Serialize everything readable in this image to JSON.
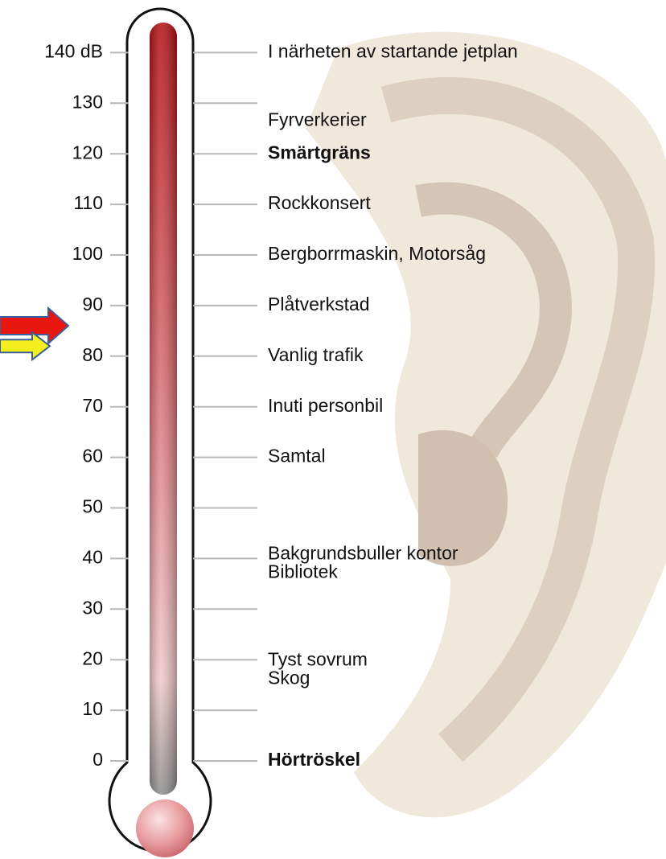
{
  "scale": {
    "ticks": [
      {
        "value": 140,
        "label": "140 dB"
      },
      130,
      120,
      110,
      100,
      90,
      80,
      70,
      60,
      50,
      40,
      30,
      20,
      10,
      0
    ]
  },
  "sources": [
    {
      "lines": [
        "I närheten av startande jetplan"
      ],
      "level": 140,
      "bold": false
    },
    {
      "lines": [
        "Fyrverkerier"
      ],
      "level": 126.5,
      "bold": false
    },
    {
      "lines": [
        "Smärtgräns"
      ],
      "level": 120,
      "bold": true
    },
    {
      "lines": [
        "Rockkonsert"
      ],
      "level": 110,
      "bold": false
    },
    {
      "lines": [
        "Bergborrmaskin, Motorsåg"
      ],
      "level": 100,
      "bold": false
    },
    {
      "lines": [
        "Plåtverkstad"
      ],
      "level": 90,
      "bold": false
    },
    {
      "lines": [
        "Vanlig trafik"
      ],
      "level": 80,
      "bold": false
    },
    {
      "lines": [
        "Inuti personbil"
      ],
      "level": 70,
      "bold": false
    },
    {
      "lines": [
        "Samtal"
      ],
      "level": 60,
      "bold": false
    },
    {
      "lines": [
        "Bakgrundsbuller kontor",
        "Bibliotek"
      ],
      "level": 39,
      "bold": false
    },
    {
      "lines": [
        "Tyst sovrum",
        "Skog"
      ],
      "level": 18,
      "bold": false
    },
    {
      "lines": [
        "Hörtröskel"
      ],
      "level": 0,
      "bold": true
    }
  ],
  "markers": [
    {
      "level": 86,
      "color": "#e8170f"
    },
    {
      "level": 82,
      "color": "#f3ee1e"
    }
  ]
}
